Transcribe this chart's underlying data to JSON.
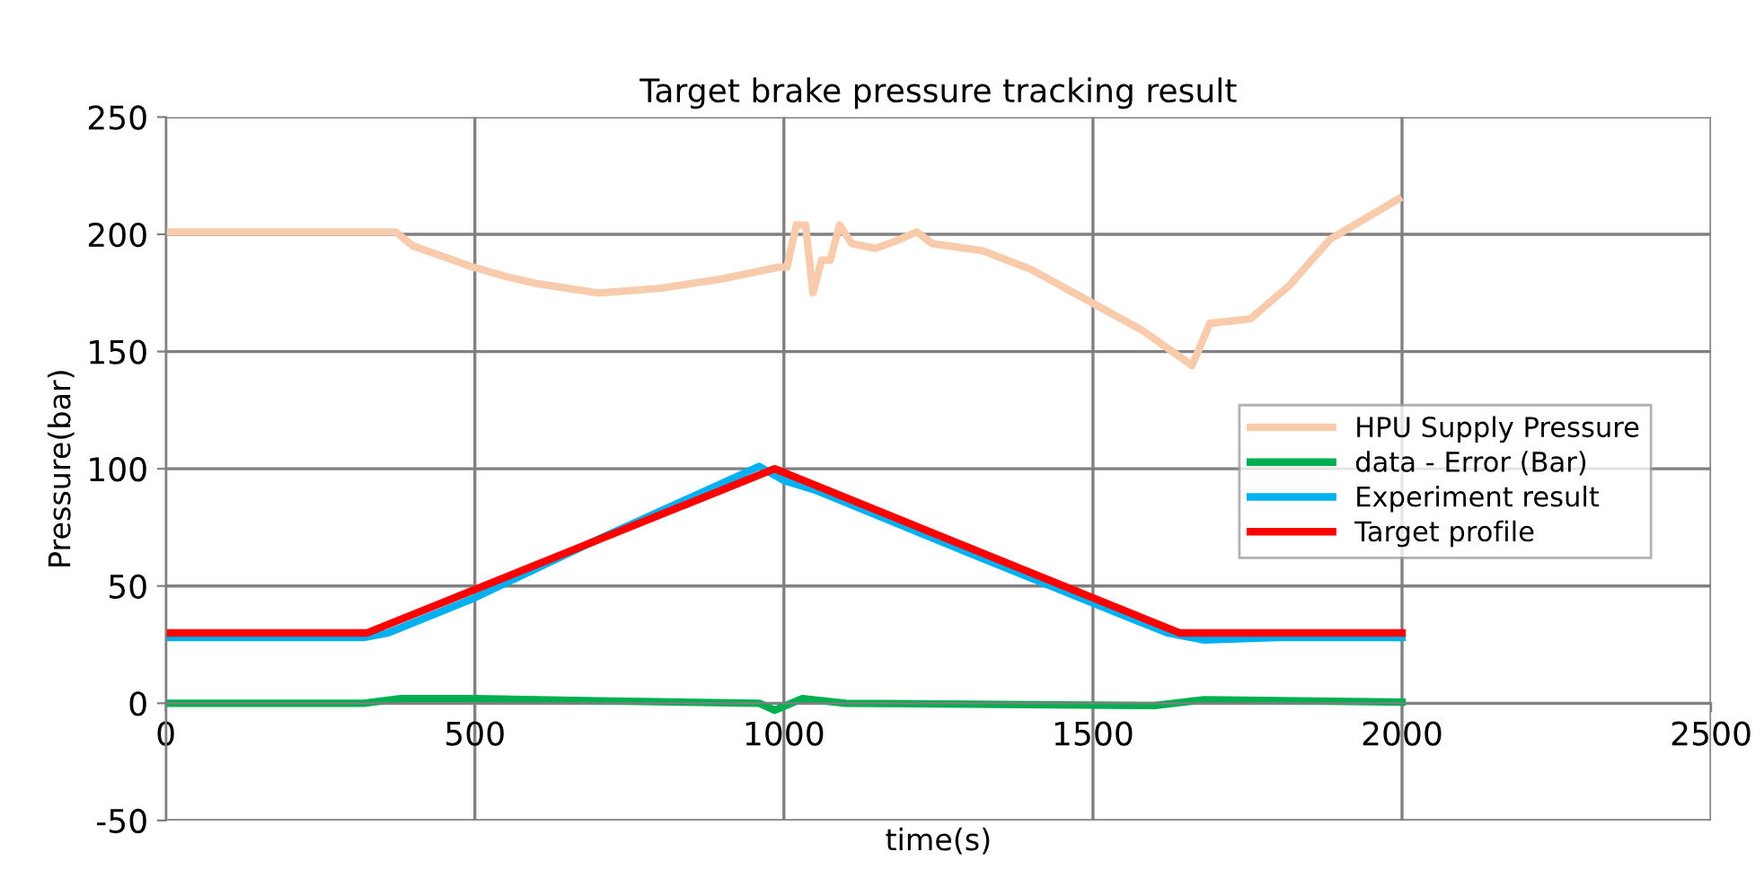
{
  "chart_data": {
    "type": "line",
    "title": "Target brake pressure tracking result",
    "xlabel": "time(s)",
    "ylabel": "Pressure(bar)",
    "xlim": [
      0,
      2500
    ],
    "xticks": [
      0,
      500,
      1000,
      1500,
      2000,
      2500
    ],
    "ylim": [
      -50,
      250
    ],
    "yticks": [
      -50,
      0,
      50,
      100,
      150,
      200,
      250
    ],
    "grid": true,
    "legend": "right",
    "line_style": "solid",
    "marker": "none",
    "series": [
      {
        "name": "HPU Supply Pressure",
        "color": "#f8cbad",
        "x": [
          0,
          200,
          372,
          400,
          497,
          550,
          600,
          700,
          800,
          900,
          991,
          1005,
          1020,
          1035,
          1047,
          1061,
          1075,
          1090,
          1110,
          1148,
          1180,
          1215,
          1240,
          1322,
          1400,
          1497,
          1580,
          1650,
          1660,
          1670,
          1689,
          1755,
          1817,
          1884,
          1994
        ],
        "values": [
          201,
          201,
          201,
          195,
          186,
          182,
          179,
          175,
          177,
          181,
          186,
          186,
          204,
          204,
          175,
          189,
          189,
          204,
          196,
          194,
          197,
          201,
          196,
          193,
          185,
          171,
          159,
          146,
          144,
          150,
          162,
          164,
          178,
          198,
          215
        ]
      },
      {
        "name": "data - Error (Bar)",
        "color": "#00b050",
        "x": [
          0,
          320,
          380,
          500,
          700,
          960,
          985,
          1030,
          1100,
          1600,
          1680,
          2000
        ],
        "values": [
          0,
          0,
          2,
          2,
          1,
          0,
          -3,
          2,
          0,
          -1,
          1.5,
          0.5
        ]
      },
      {
        "name": "Experiment result",
        "color": "#00b0f0",
        "x": [
          0,
          320,
          360,
          500,
          700,
          960,
          1000,
          1050,
          1300,
          1620,
          1680,
          1800,
          2000
        ],
        "values": [
          28,
          28,
          30,
          45,
          70,
          101,
          95,
          91,
          64,
          30,
          27,
          28,
          28
        ]
      },
      {
        "name": "Target profile",
        "color": "#ff0000",
        "x": [
          0,
          326,
          985,
          1640,
          2000
        ],
        "values": [
          30,
          30,
          100,
          30,
          30
        ]
      }
    ]
  }
}
